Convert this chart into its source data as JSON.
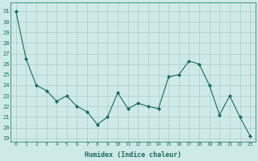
{
  "x": [
    0,
    1,
    2,
    3,
    4,
    5,
    6,
    7,
    8,
    9,
    10,
    11,
    12,
    13,
    14,
    15,
    16,
    17,
    18,
    19,
    20,
    21,
    22,
    23
  ],
  "y": [
    31,
    26.5,
    24,
    23.5,
    22.5,
    23,
    22,
    21.5,
    20.3,
    21,
    23.3,
    21.8,
    22.3,
    22,
    21.8,
    24.8,
    25,
    26.3,
    26,
    24,
    21.2,
    23,
    21,
    19.2
  ],
  "line_color": "#1a6b5a",
  "marker": "D",
  "marker_size": 2,
  "bg_color": "#ceeae6",
  "grid_color": "#aaccc8",
  "xlabel": "Humidex (Indice chaleur)",
  "ylabel_ticks": [
    19,
    20,
    21,
    22,
    23,
    24,
    25,
    26,
    27,
    28,
    29,
    30,
    31
  ],
  "ylim": [
    18.7,
    31.8
  ],
  "xlim": [
    -0.5,
    23.5
  ]
}
